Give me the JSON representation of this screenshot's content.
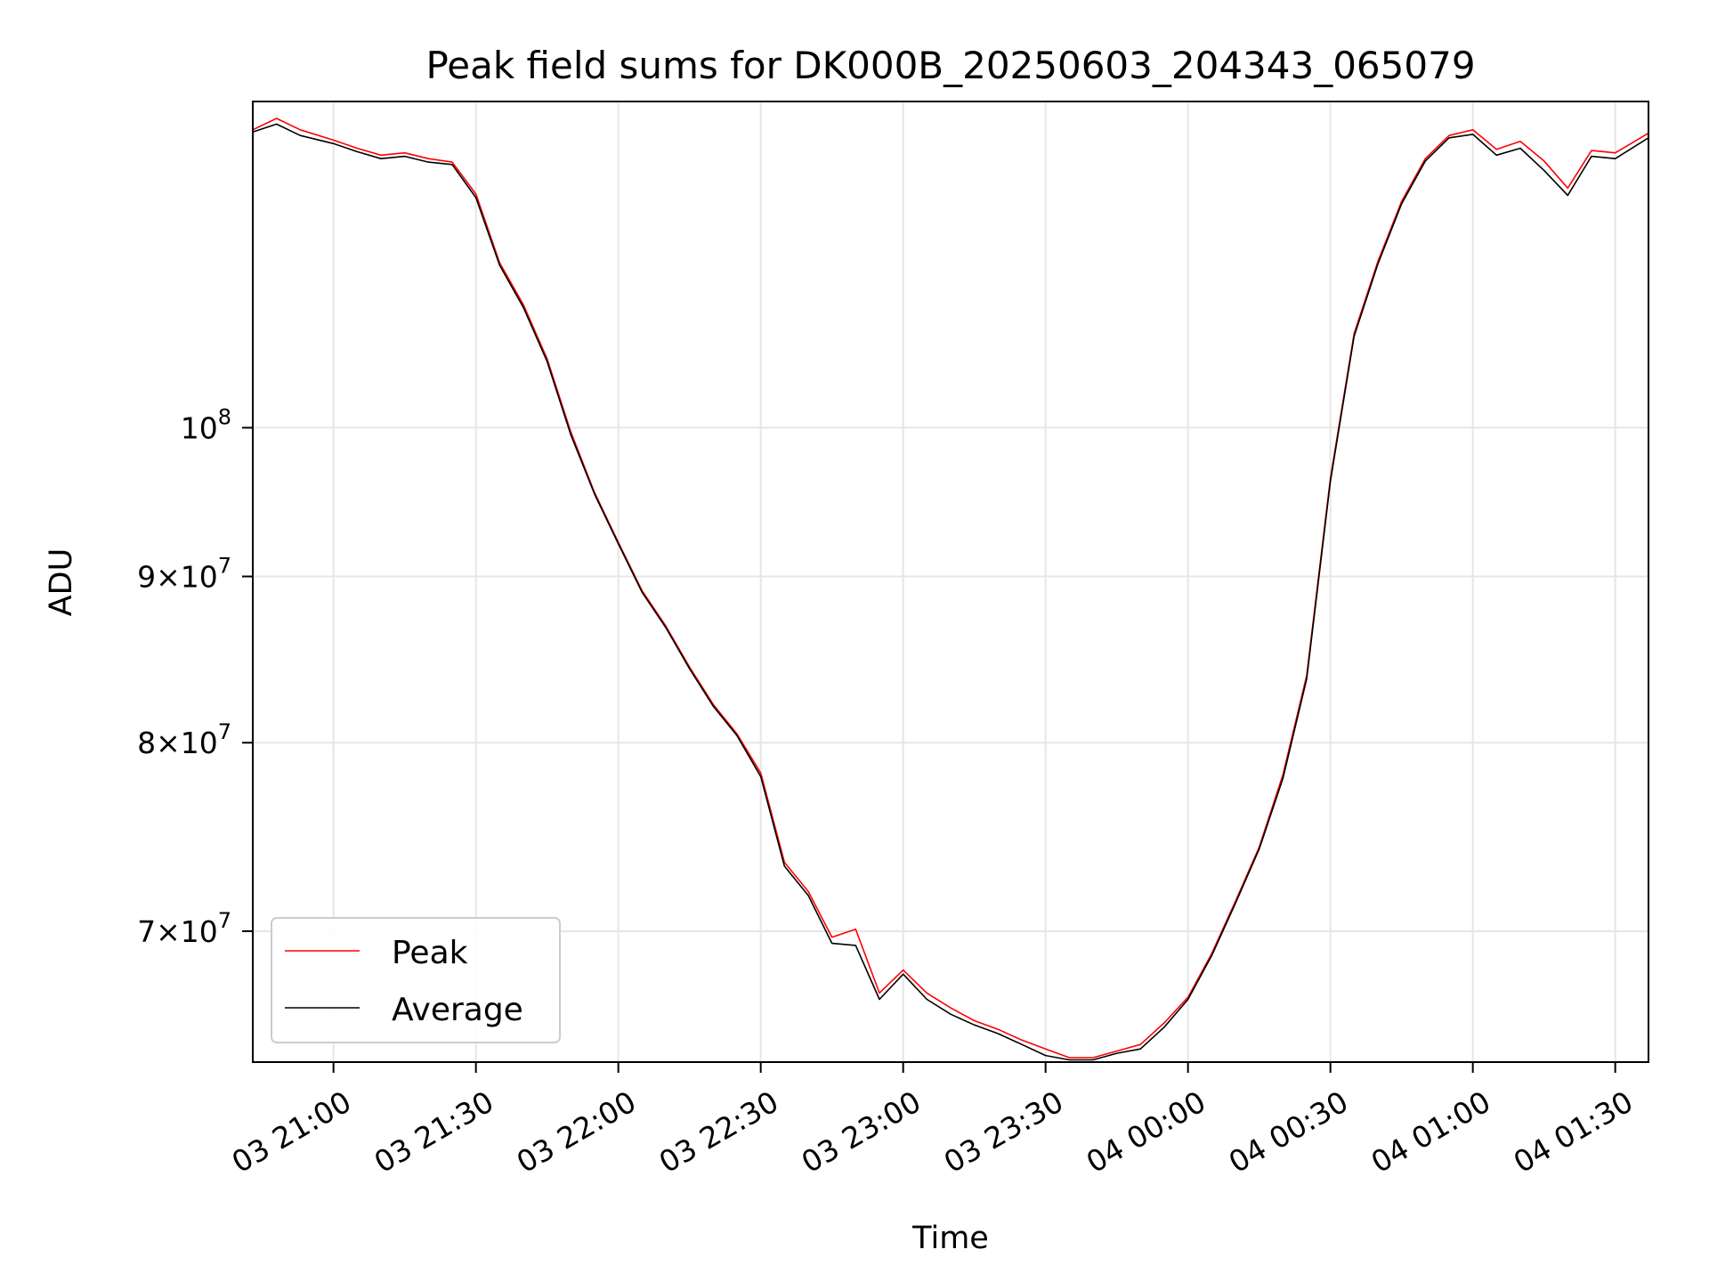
{
  "chart_data": {
    "type": "line",
    "title": "Peak field sums for DK000B_20250603_204343_065079",
    "xlabel": "Time",
    "ylabel": "ADU",
    "y_scale": "log",
    "grid": true,
    "legend_position": "lower-left",
    "xlim": [
      "2025-06-03 20:43",
      "2025-06-04 01:37"
    ],
    "ylim": [
      63800000,
      126000000
    ],
    "x_ticks": [
      {
        "value": "2025-06-03 21:00",
        "label": "03 21:00"
      },
      {
        "value": "2025-06-03 21:30",
        "label": "03 21:30"
      },
      {
        "value": "2025-06-03 22:00",
        "label": "03 22:00"
      },
      {
        "value": "2025-06-03 22:30",
        "label": "03 22:30"
      },
      {
        "value": "2025-06-03 23:00",
        "label": "03 23:00"
      },
      {
        "value": "2025-06-03 23:30",
        "label": "03 23:30"
      },
      {
        "value": "2025-06-04 00:00",
        "label": "04 00:00"
      },
      {
        "value": "2025-06-04 00:30",
        "label": "04 00:30"
      },
      {
        "value": "2025-06-04 01:00",
        "label": "04 01:00"
      },
      {
        "value": "2025-06-04 01:30",
        "label": "04 01:30"
      }
    ],
    "y_ticks": [
      {
        "value": 100000000,
        "base": "10",
        "exp": "8"
      },
      {
        "value": 90000000,
        "mant": "9",
        "base": "10",
        "exp": "7"
      },
      {
        "value": 80000000,
        "mant": "8",
        "base": "10",
        "exp": "7"
      },
      {
        "value": 70000000,
        "mant": "7",
        "base": "10",
        "exp": "7"
      }
    ],
    "series": [
      {
        "name": "Peak",
        "color": "#ff0000",
        "x": [
          "2025-06-03 20:43",
          "2025-06-03 20:48",
          "2025-06-03 20:53",
          "2025-06-03 21:00",
          "2025-06-03 21:05",
          "2025-06-03 21:10",
          "2025-06-03 21:15",
          "2025-06-03 21:20",
          "2025-06-03 21:25",
          "2025-06-03 21:30",
          "2025-06-03 21:35",
          "2025-06-03 21:40",
          "2025-06-03 21:45",
          "2025-06-03 21:50",
          "2025-06-03 21:55",
          "2025-06-03 22:00",
          "2025-06-03 22:05",
          "2025-06-03 22:10",
          "2025-06-03 22:15",
          "2025-06-03 22:20",
          "2025-06-03 22:25",
          "2025-06-03 22:30",
          "2025-06-03 22:35",
          "2025-06-03 22:40",
          "2025-06-03 22:45",
          "2025-06-03 22:50",
          "2025-06-03 22:55",
          "2025-06-03 23:00",
          "2025-06-03 23:05",
          "2025-06-03 23:10",
          "2025-06-03 23:15",
          "2025-06-03 23:20",
          "2025-06-03 23:25",
          "2025-06-03 23:30",
          "2025-06-03 23:35",
          "2025-06-03 23:40",
          "2025-06-03 23:45",
          "2025-06-03 23:50",
          "2025-06-03 23:55",
          "2025-06-04 00:00",
          "2025-06-04 00:05",
          "2025-06-04 00:10",
          "2025-06-04 00:15",
          "2025-06-04 00:20",
          "2025-06-04 00:25",
          "2025-06-04 00:30",
          "2025-06-04 00:35",
          "2025-06-04 00:40",
          "2025-06-04 00:45",
          "2025-06-04 00:50",
          "2025-06-04 00:55",
          "2025-06-04 01:00",
          "2025-06-04 01:05",
          "2025-06-04 01:10",
          "2025-06-04 01:15",
          "2025-06-04 01:20",
          "2025-06-04 01:25",
          "2025-06-04 01:30",
          "2025-06-04 01:37"
        ],
        "values": [
          123500000,
          124500000,
          123500000,
          122600000,
          121900000,
          121300000,
          121500000,
          121000000,
          120700000,
          118000000,
          112400000,
          109100000,
          105000000,
          99700000,
          95500000,
          92200000,
          89100000,
          86900000,
          84400000,
          82200000,
          80500000,
          78300000,
          73500000,
          72000000,
          69700000,
          70100000,
          67000000,
          68100000,
          67000000,
          66300000,
          65700000,
          65300000,
          64800000,
          64400000,
          64000000,
          64000000,
          64300000,
          64600000,
          65600000,
          66800000,
          68900000,
          71500000,
          74300000,
          78200000,
          83900000,
          96500000,
          106900000,
          112500000,
          117400000,
          121000000,
          123000000,
          123500000,
          121800000,
          122500000,
          120800000,
          118500000,
          121700000,
          121500000,
          123200000
        ]
      },
      {
        "name": "Average",
        "color": "#000000",
        "x": [
          "2025-06-03 20:43",
          "2025-06-03 20:48",
          "2025-06-03 20:53",
          "2025-06-03 21:00",
          "2025-06-03 21:05",
          "2025-06-03 21:10",
          "2025-06-03 21:15",
          "2025-06-03 21:20",
          "2025-06-03 21:25",
          "2025-06-03 21:30",
          "2025-06-03 21:35",
          "2025-06-03 21:40",
          "2025-06-03 21:45",
          "2025-06-03 21:50",
          "2025-06-03 21:55",
          "2025-06-03 22:00",
          "2025-06-03 22:05",
          "2025-06-03 22:10",
          "2025-06-03 22:15",
          "2025-06-03 22:20",
          "2025-06-03 22:25",
          "2025-06-03 22:30",
          "2025-06-03 22:35",
          "2025-06-03 22:40",
          "2025-06-03 22:45",
          "2025-06-03 22:50",
          "2025-06-03 22:55",
          "2025-06-03 23:00",
          "2025-06-03 23:05",
          "2025-06-03 23:10",
          "2025-06-03 23:15",
          "2025-06-03 23:20",
          "2025-06-03 23:25",
          "2025-06-03 23:30",
          "2025-06-03 23:35",
          "2025-06-03 23:40",
          "2025-06-03 23:45",
          "2025-06-03 23:50",
          "2025-06-03 23:55",
          "2025-06-04 00:00",
          "2025-06-04 00:05",
          "2025-06-04 00:10",
          "2025-06-04 00:15",
          "2025-06-04 00:20",
          "2025-06-04 00:25",
          "2025-06-04 00:30",
          "2025-06-04 00:35",
          "2025-06-04 00:40",
          "2025-06-04 00:45",
          "2025-06-04 00:50",
          "2025-06-04 00:55",
          "2025-06-04 01:00",
          "2025-06-04 01:05",
          "2025-06-04 01:10",
          "2025-06-04 01:15",
          "2025-06-04 01:20",
          "2025-06-04 01:25",
          "2025-06-04 01:30",
          "2025-06-04 01:37"
        ],
        "values": [
          123300000,
          124000000,
          123000000,
          122300000,
          121600000,
          121000000,
          121200000,
          120700000,
          120500000,
          117700000,
          112200000,
          108900000,
          104800000,
          99500000,
          95400000,
          92100000,
          89000000,
          86800000,
          84300000,
          82100000,
          80400000,
          78100000,
          73300000,
          71800000,
          69400000,
          69300000,
          66700000,
          67900000,
          66700000,
          66000000,
          65500000,
          65100000,
          64600000,
          64100000,
          63900000,
          63900000,
          64200000,
          64400000,
          65400000,
          66700000,
          68800000,
          71400000,
          74200000,
          78000000,
          83700000,
          96300000,
          106700000,
          112300000,
          117200000,
          120800000,
          122800000,
          123100000,
          121300000,
          121900000,
          120000000,
          117900000,
          121200000,
          121000000,
          122800000
        ]
      }
    ]
  }
}
